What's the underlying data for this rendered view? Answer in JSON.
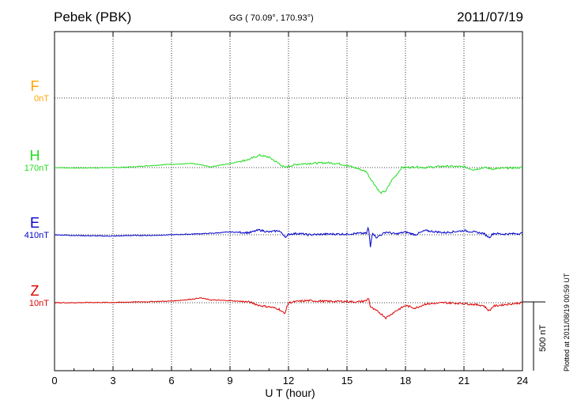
{
  "header": {
    "station": "Pebek (PBK)",
    "coordinates": "GG ( 70.09°, 170.93°)",
    "date": "2011/07/19",
    "plotted_note": "Plotted at 2011/08/19 00:59 UT"
  },
  "chart_data": {
    "type": "line",
    "title": "Pebek (PBK) 2011/07/19",
    "xlabel": "U T (hour)",
    "xlim": [
      0,
      24
    ],
    "xticks": [
      0,
      3,
      6,
      9,
      12,
      15,
      18,
      21,
      24
    ],
    "xtick_labels": [
      "0",
      "3",
      "6",
      "9",
      "12",
      "15",
      "18",
      "21",
      "24"
    ],
    "grid": true,
    "scale_bar": {
      "value_nT": 500,
      "label": "500 nT"
    },
    "units_per_division_nT": 166.67,
    "series": [
      {
        "name": "F",
        "baseline": "0nT",
        "color": "#ffa500",
        "x": [],
        "y": []
      },
      {
        "name": "H",
        "baseline": "170nT",
        "color": "#22dd22",
        "x": [
          0,
          1,
          2,
          3,
          4,
          5,
          6,
          6.5,
          7,
          7.5,
          8,
          9,
          10,
          10.5,
          11,
          11.5,
          11.8,
          12,
          12.5,
          13,
          14,
          14.5,
          15,
          15.5,
          16,
          16.2,
          16.5,
          16.7,
          17,
          17.3,
          17.5,
          17.8,
          18,
          18.5,
          19,
          20,
          21,
          21.5,
          22,
          22.5,
          23,
          24
        ],
        "y": [
          0,
          -3,
          -2,
          0,
          5,
          15,
          25,
          25,
          30,
          20,
          5,
          30,
          60,
          90,
          75,
          30,
          0,
          10,
          25,
          30,
          35,
          30,
          15,
          -5,
          -30,
          -80,
          -140,
          -185,
          -170,
          -90,
          -60,
          0,
          0,
          5,
          0,
          10,
          5,
          -15,
          0,
          -10,
          -5,
          0
        ]
      },
      {
        "name": "E",
        "baseline": "410nT",
        "color": "#0000cc",
        "x": [
          0,
          1,
          2,
          3,
          4,
          5,
          6,
          7,
          8,
          9,
          10,
          10.5,
          11,
          11.5,
          11.9,
          12,
          12.5,
          13,
          14,
          15,
          15.5,
          16,
          16.1,
          16.2,
          16.3,
          16.5,
          17,
          17.5,
          18,
          18.5,
          19,
          20,
          21,
          22,
          22.3,
          22.5,
          23,
          24
        ],
        "y": [
          0,
          -5,
          -8,
          -10,
          -5,
          -5,
          0,
          5,
          10,
          20,
          15,
          35,
          20,
          30,
          -20,
          5,
          10,
          0,
          5,
          5,
          10,
          10,
          60,
          -90,
          20,
          -20,
          20,
          5,
          20,
          0,
          30,
          15,
          30,
          10,
          -20,
          10,
          5,
          10
        ]
      },
      {
        "name": "Z",
        "baseline": "10nT",
        "color": "#dd0000",
        "x": [
          0,
          1,
          2,
          3,
          4,
          5,
          6,
          7,
          7.5,
          8,
          9,
          10,
          10.5,
          11,
          11.5,
          11.8,
          12,
          12.5,
          13,
          14,
          15,
          15.5,
          16,
          16.1,
          16.2,
          16.4,
          16.7,
          17,
          17.5,
          18,
          18.5,
          19,
          20,
          21,
          22,
          22.3,
          22.5,
          23,
          24
        ],
        "y": [
          0,
          0,
          2,
          2,
          5,
          8,
          12,
          25,
          35,
          20,
          15,
          5,
          -20,
          -30,
          -45,
          -80,
          0,
          10,
          15,
          10,
          10,
          5,
          15,
          40,
          -30,
          -50,
          -75,
          -110,
          -60,
          -20,
          -40,
          -10,
          0,
          -5,
          -20,
          -60,
          -25,
          -15,
          0
        ]
      }
    ]
  }
}
